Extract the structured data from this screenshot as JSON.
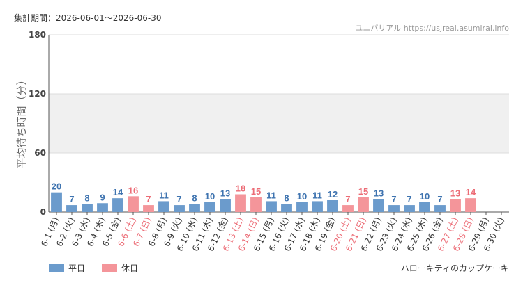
{
  "chart_data": {
    "type": "bar",
    "title": "集計期間：2026-06-01～2026-06-30",
    "source": "ユニバリアル  https://usjreal.asumirai.info",
    "subtitle": "ハローキティのカップケーキ",
    "y_label": "平均待ち時間（分）",
    "categories": [
      "6-1 (月)",
      "6-2 (火)",
      "6-3 (水)",
      "6-4 (木)",
      "6-5 (金)",
      "6-6 (土)",
      "6-7 (日)",
      "6-8 (月)",
      "6-9 (火)",
      "6-10 (水)",
      "6-11 (木)",
      "6-12 (金)",
      "6-13 (土)",
      "6-14 (日)",
      "6-15 (月)",
      "6-16 (火)",
      "6-17 (水)",
      "6-18 (木)",
      "6-19 (金)",
      "6-20 (土)",
      "6-21 (日)",
      "6-22 (月)",
      "6-23 (火)",
      "6-24 (水)",
      "6-25 (木)",
      "6-26 (金)",
      "6-27 (土)",
      "6-28 (日)",
      "6-29 (月)",
      "6-30 (火)"
    ],
    "series": [
      {
        "name": "平日",
        "color": "#6b9bcc",
        "values": [
          20,
          7,
          8,
          9,
          14,
          null,
          null,
          11,
          7,
          8,
          10,
          13,
          null,
          null,
          11,
          8,
          10,
          11,
          12,
          null,
          null,
          13,
          7,
          7,
          10,
          7,
          null,
          null,
          null,
          null
        ]
      },
      {
        "name": "休日",
        "color": "#f4959a",
        "values": [
          null,
          null,
          null,
          null,
          null,
          16,
          7,
          null,
          null,
          null,
          null,
          null,
          18,
          15,
          null,
          null,
          null,
          null,
          null,
          7,
          15,
          null,
          null,
          null,
          null,
          null,
          13,
          14,
          null,
          null
        ]
      }
    ],
    "ylim": [
      0,
      180
    ],
    "yticks": [
      0,
      60,
      120,
      180
    ],
    "grid": true
  }
}
